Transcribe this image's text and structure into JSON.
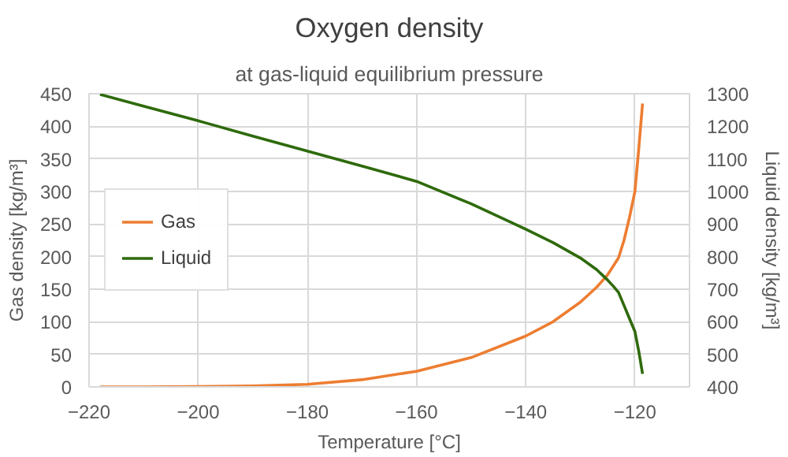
{
  "chart_data": {
    "type": "line",
    "title": "Oxygen density",
    "subtitle": "at gas-liquid equilibrium pressure",
    "xlabel": "Temperature [°C]",
    "ylabel": "Gas density [kg/m³]",
    "y2label": "Liquid density [kg/m³]",
    "xlim": [
      -220,
      -110
    ],
    "xticks": [
      -220,
      -200,
      -180,
      -160,
      -140,
      -120
    ],
    "ylim": [
      0,
      450
    ],
    "yticks": [
      0,
      50,
      100,
      150,
      200,
      250,
      300,
      350,
      400,
      450
    ],
    "y2lim": [
      400,
      1300
    ],
    "y2ticks": [
      400,
      500,
      600,
      700,
      800,
      900,
      1000,
      1100,
      1200,
      1300
    ],
    "grid": true,
    "legend": "left",
    "series": [
      {
        "name": "Gas",
        "color": "#ed7d31",
        "x": [
          -218,
          -210,
          -200,
          -190,
          -180,
          -170,
          -160,
          -150,
          -140,
          -135,
          -130,
          -127,
          -125,
          -123,
          -122,
          -121,
          -120,
          -119.3,
          -118.6
        ],
        "values": [
          0,
          0,
          0.5,
          1.5,
          4,
          11,
          24,
          45,
          78,
          100,
          130,
          153,
          172,
          198,
          225,
          260,
          300,
          365,
          435
        ]
      },
      {
        "name": "Liquid",
        "color": "#2e6a0c",
        "x": [
          -218,
          -210,
          -200,
          -190,
          -180,
          -170,
          -160,
          -150,
          -140,
          -135,
          -130,
          -127,
          -125,
          -124,
          -123,
          -122,
          -121,
          -120,
          -119.3,
          -118.6
        ],
        "values": [
          1298,
          1262,
          1217,
          1170,
          1124,
          1078,
          1031,
          962,
          884,
          843,
          796,
          760,
          728,
          710,
          690,
          650,
          610,
          570,
          510,
          440
        ],
        "axis": "y2"
      }
    ]
  }
}
